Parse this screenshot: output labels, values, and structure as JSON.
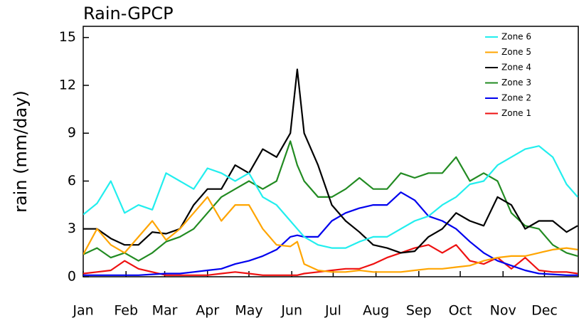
{
  "chart_data": {
    "type": "line",
    "title": "Rain-GPCP",
    "y_label": "rain (mm/day)",
    "x": [
      0,
      10,
      20,
      30,
      40,
      50,
      60,
      70,
      80,
      90,
      100,
      110,
      120,
      130,
      140,
      150,
      155,
      160,
      170,
      180,
      190,
      200,
      210,
      220,
      230,
      240,
      250,
      260,
      270,
      280,
      290,
      300,
      310,
      320,
      330,
      340,
      350,
      358
    ],
    "xlim": [
      0,
      359
    ],
    "xticks": [
      {
        "value": 0,
        "label": "Jan"
      },
      {
        "value": 31,
        "label": "Feb"
      },
      {
        "value": 59,
        "label": "Mar"
      },
      {
        "value": 90,
        "label": "Apr"
      },
      {
        "value": 120,
        "label": "May"
      },
      {
        "value": 151,
        "label": "Jun"
      },
      {
        "value": 181,
        "label": "Jul"
      },
      {
        "value": 212,
        "label": "Aug"
      },
      {
        "value": 243,
        "label": "Sep"
      },
      {
        "value": 273,
        "label": "Oct"
      },
      {
        "value": 304,
        "label": "Nov"
      },
      {
        "value": 334,
        "label": "Dec"
      }
    ],
    "ylim": [
      0,
      15.7
    ],
    "yticks": [
      0,
      3,
      6,
      9,
      12,
      15
    ],
    "legend": "upper right",
    "series": [
      {
        "name": "Zone 6",
        "color": "#22eeee",
        "values": [
          3.9,
          4.6,
          6.0,
          4.0,
          4.5,
          4.2,
          6.5,
          6.0,
          5.5,
          6.8,
          6.5,
          6.0,
          6.5,
          5.0,
          4.5,
          3.5,
          3.0,
          2.5,
          2.0,
          1.8,
          1.8,
          2.2,
          2.5,
          2.5,
          3.0,
          3.5,
          3.8,
          4.5,
          5.0,
          5.8,
          6.0,
          7.0,
          7.5,
          8.0,
          8.2,
          7.5,
          5.8,
          5.0
        ]
      },
      {
        "name": "Zone 5",
        "color": "#ffa500",
        "values": [
          1.4,
          3.0,
          2.0,
          1.5,
          2.5,
          3.5,
          2.3,
          3.0,
          4.0,
          5.0,
          3.5,
          4.5,
          4.5,
          3.0,
          2.0,
          1.9,
          2.2,
          0.8,
          0.4,
          0.3,
          0.3,
          0.4,
          0.3,
          0.3,
          0.3,
          0.4,
          0.5,
          0.5,
          0.6,
          0.7,
          1.0,
          1.2,
          1.3,
          1.3,
          1.5,
          1.7,
          1.8,
          1.7
        ]
      },
      {
        "name": "Zone 4",
        "color": "#000000",
        "values": [
          3.0,
          3.0,
          2.4,
          2.0,
          2.0,
          2.8,
          2.7,
          3.0,
          4.5,
          5.5,
          5.5,
          7.0,
          6.5,
          8.0,
          7.5,
          9.0,
          13.0,
          9.0,
          7.0,
          4.5,
          3.5,
          2.8,
          2.0,
          1.8,
          1.5,
          1.6,
          2.5,
          3.0,
          4.0,
          3.5,
          3.2,
          5.0,
          4.5,
          3.0,
          3.5,
          3.5,
          2.8,
          3.2
        ]
      },
      {
        "name": "Zone 3",
        "color": "#228b22",
        "values": [
          1.4,
          1.8,
          1.2,
          1.5,
          1.0,
          1.5,
          2.2,
          2.5,
          3.0,
          4.0,
          5.0,
          5.5,
          6.0,
          5.5,
          6.0,
          8.5,
          7.0,
          6.0,
          5.0,
          5.0,
          5.5,
          6.2,
          5.5,
          5.5,
          6.5,
          6.2,
          6.5,
          6.5,
          7.5,
          6.0,
          6.5,
          6.0,
          4.0,
          3.2,
          3.0,
          2.0,
          1.5,
          1.3
        ]
      },
      {
        "name": "Zone 2",
        "color": "#0000ee",
        "values": [
          0.1,
          0.1,
          0.1,
          0.1,
          0.1,
          0.15,
          0.2,
          0.2,
          0.3,
          0.4,
          0.5,
          0.8,
          1.0,
          1.3,
          1.7,
          2.5,
          2.6,
          2.5,
          2.5,
          3.5,
          4.0,
          4.3,
          4.5,
          4.5,
          5.3,
          4.8,
          3.8,
          3.5,
          3.0,
          2.2,
          1.5,
          1.0,
          0.7,
          0.4,
          0.2,
          0.15,
          0.1,
          0.1
        ]
      },
      {
        "name": "Zone 1",
        "color": "#ee1111",
        "values": [
          0.2,
          0.3,
          0.4,
          1.0,
          0.5,
          0.3,
          0.1,
          0.1,
          0.1,
          0.1,
          0.2,
          0.3,
          0.2,
          0.1,
          0.1,
          0.1,
          0.1,
          0.2,
          0.3,
          0.4,
          0.5,
          0.5,
          0.8,
          1.2,
          1.5,
          1.8,
          2.0,
          1.5,
          2.0,
          1.0,
          0.8,
          1.2,
          0.5,
          1.2,
          0.4,
          0.3,
          0.3,
          0.2
        ]
      }
    ]
  }
}
